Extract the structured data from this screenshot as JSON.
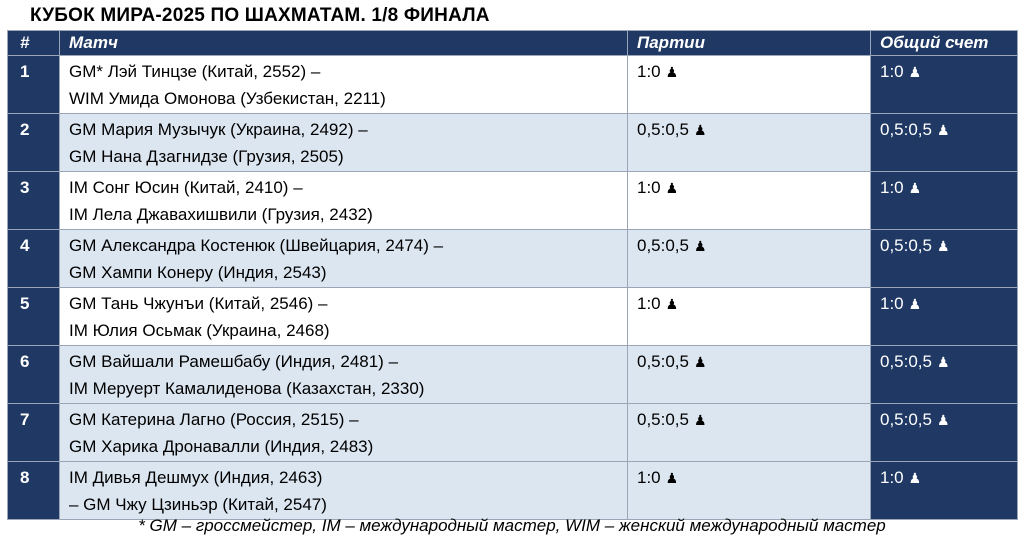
{
  "title": "КУБОК МИРА-2025 ПО ШАХМАТАМ. 1/8 ФИНАЛА",
  "headers": {
    "num": "#",
    "match": "Матч",
    "games": "Партии",
    "total": "Общий счет"
  },
  "icon": "chess-pawn-icon",
  "colors": {
    "header_bg": "#1f3864",
    "alt_row_bg": "#dce6f1",
    "plain_row_bg": "#ffffff"
  },
  "rows": [
    {
      "num": "1",
      "p1": "GM* Лэй Тинцзе (Китай, 2552) –",
      "p2": "WIM Умида Омонова (Узбекистан, 2211)",
      "games": "1:0",
      "total": "1:0"
    },
    {
      "num": "2",
      "p1": "GM Мария Музычук (Украина, 2492) –",
      "p2": "GM Нана Дзагнидзе (Грузия, 2505)",
      "games": "0,5:0,5",
      "total": "0,5:0,5"
    },
    {
      "num": "3",
      "p1": "IM Сонг Юсин (Китай, 2410) –",
      "p2": "IM Лела Джавахишвили (Грузия, 2432)",
      "games": "1:0",
      "total": "1:0"
    },
    {
      "num": "4",
      "p1": "GM Александра Костенюк (Швейцария, 2474) –",
      "p2": "GM Хампи Конеру (Индия, 2543)",
      "games": "0,5:0,5",
      "total": "0,5:0,5"
    },
    {
      "num": "5",
      "p1": "GM Тань Чжунъи (Китай, 2546) –",
      "p2": "IM Юлия Осьмак (Украина, 2468)",
      "games": "1:0",
      "total": "1:0"
    },
    {
      "num": "6",
      "p1": "GM Вайшали Рамешбабу (Индия, 2481) –",
      "p2": "IM Меруерт Камалиденова (Казахстан, 2330)",
      "games": "0,5:0,5",
      "total": "0,5:0,5"
    },
    {
      "num": "7",
      "p1": "GM Катерина Лагно (Россия, 2515) –",
      "p2": "GM Харика Дронавалли (Индия, 2483)",
      "games": "0,5:0,5",
      "total": "0,5:0,5"
    },
    {
      "num": "8",
      "p1": "IM Дивья Дешмух (Индия, 2463)",
      "p2": "– GM Чжу Цзиньэр (Китай, 2547)",
      "games": "1:0",
      "total": "1:0"
    }
  ],
  "footnote": "* GM – гроссмейстер, IM – международный мастер, WIM – женский международный мастер"
}
